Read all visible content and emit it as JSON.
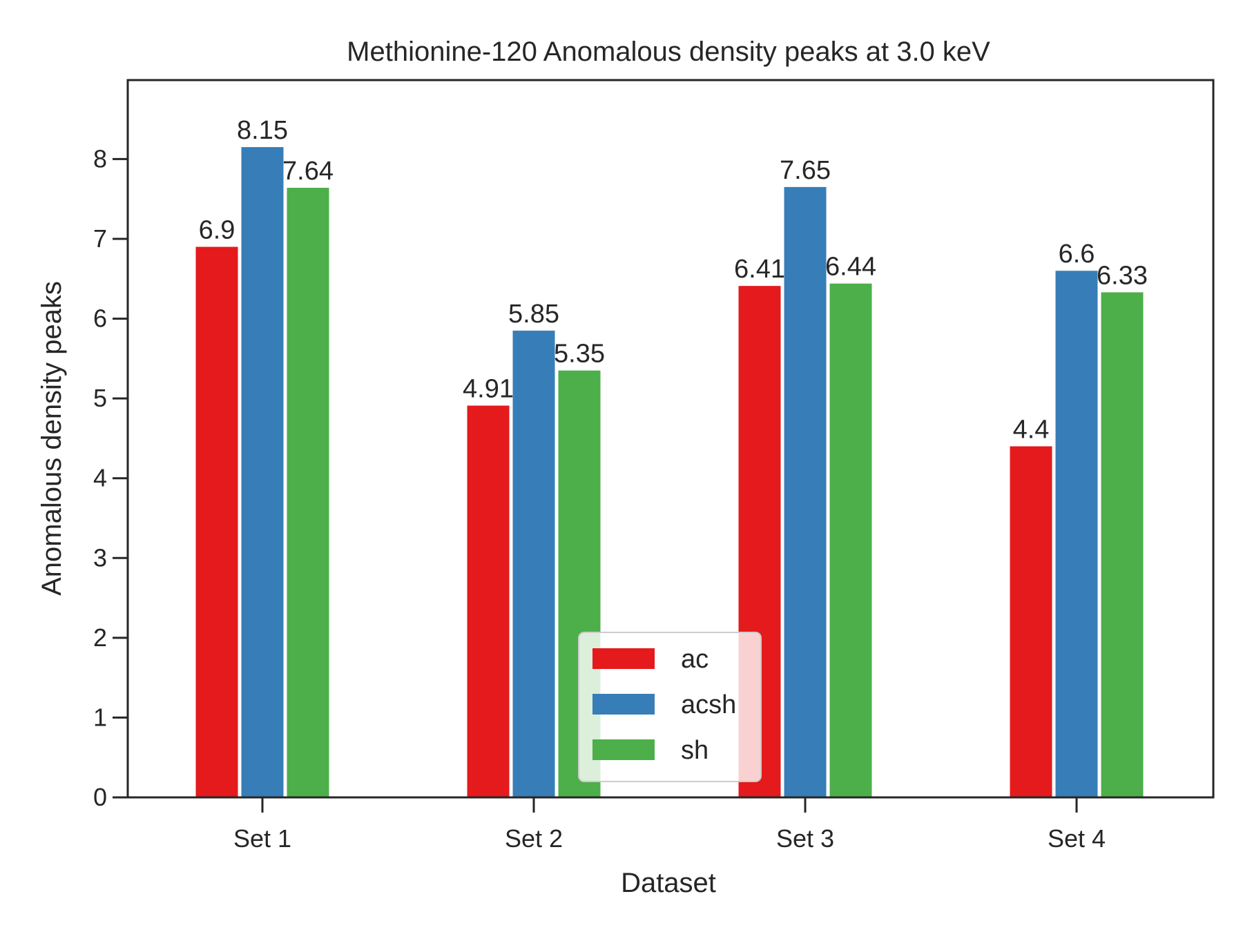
{
  "chart_data": {
    "type": "bar",
    "title": "Methionine-120 Anomalous density peaks at 3.0 keV",
    "xlabel": "Dataset",
    "ylabel": "Anomalous density peaks",
    "categories": [
      "Set 1",
      "Set 2",
      "Set 3",
      "Set 4"
    ],
    "series": [
      {
        "name": "ac",
        "color": "#e41a1c",
        "values": [
          6.9,
          4.91,
          6.41,
          4.4
        ]
      },
      {
        "name": "acsh",
        "color": "#377eb8",
        "values": [
          8.15,
          5.85,
          7.65,
          6.6
        ]
      },
      {
        "name": "sh",
        "color": "#4daf4a",
        "values": [
          7.64,
          5.35,
          6.44,
          6.33
        ]
      }
    ],
    "data_labels": [
      [
        "6.9",
        "4.91",
        "6.41",
        "4.4"
      ],
      [
        "8.15",
        "5.85",
        "7.65",
        "6.6"
      ],
      [
        "7.64",
        "5.35",
        "6.44",
        "6.33"
      ]
    ],
    "ylim": [
      0,
      8.99
    ],
    "yticks": [
      0,
      1,
      2,
      3,
      4,
      5,
      6,
      7,
      8
    ],
    "grid": false,
    "legend_position": "lower-center"
  }
}
